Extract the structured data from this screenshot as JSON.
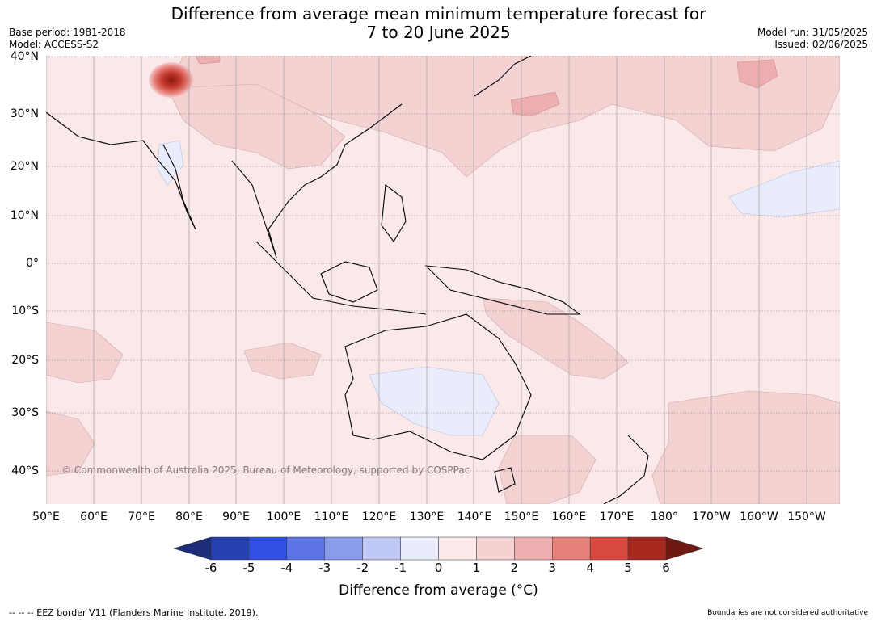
{
  "title_line1": "Difference from average mean minimum temperature forecast for",
  "title_line2": "7 to 20 June 2025",
  "base_period": "Base period: 1981-2018",
  "model": "Model: ACCESS-S2",
  "model_run": "Model run: 31/05/2025",
  "issued": "Issued: 02/06/2025",
  "copyright": "© Commonwealth of Australia 2025, Bureau of Meteorology, supported by COSPPac",
  "lat_labels": [
    "40°N",
    "30°N",
    "20°N",
    "10°N",
    "0°",
    "10°S",
    "20°S",
    "30°S",
    "40°S"
  ],
  "lon_labels": [
    "50°E",
    "60°E",
    "70°E",
    "80°E",
    "90°E",
    "100°E",
    "110°E",
    "120°E",
    "130°E",
    "140°E",
    "150°E",
    "160°E",
    "170°E",
    "180°",
    "170°W",
    "160°W",
    "150°W"
  ],
  "colorbar": {
    "title": "Difference from average (°C)",
    "labels": [
      "-6",
      "-5",
      "-4",
      "-3",
      "-2",
      "-1",
      "0",
      "1",
      "2",
      "3",
      "4",
      "5",
      "6"
    ],
    "colors": [
      "#1e2d7a",
      "#2540b0",
      "#2f50e0",
      "#5c74e6",
      "#8a9bec",
      "#bfc8f4",
      "#e8ecfb",
      "#fbe9e9",
      "#f4d2d2",
      "#ecaeae",
      "#e6807a",
      "#d94a3e",
      "#a8291f",
      "#6e1a12"
    ]
  },
  "footer_left": "--  --  -- EEZ border V11 (Flanders Marine Institute, 2019).",
  "footer_right": "Boundaries are not considered authoritative"
}
